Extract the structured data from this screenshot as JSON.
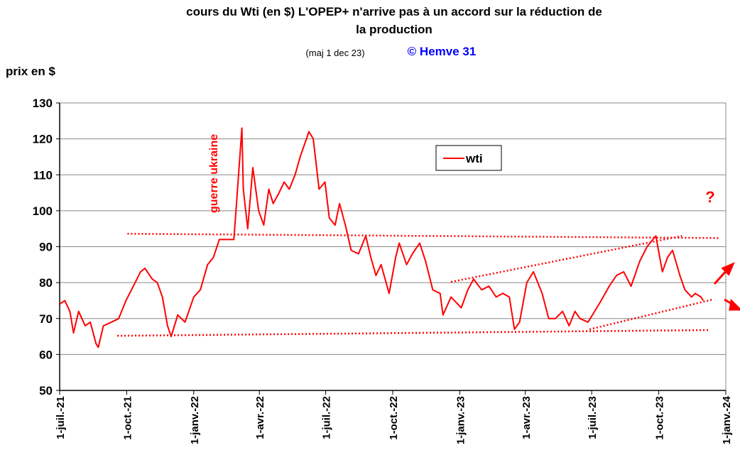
{
  "chart_data": {
    "type": "line",
    "title": [
      "cours du Wti  (en $)  L'OPEP+ n'arrive pas à un accord sur la réduction de",
      "la production"
    ],
    "subtitle": "(maj  1 dec 23)",
    "credit": "© Hemve 31",
    "ylabel": "prix en $",
    "ylim": [
      50,
      130
    ],
    "yticks": [
      50,
      60,
      70,
      80,
      90,
      100,
      110,
      120,
      130
    ],
    "xlim": [
      "2021-07-01",
      "2024-01-01"
    ],
    "xticks": [
      {
        "value": "2021-07-01",
        "label": "1-juil.-21"
      },
      {
        "value": "2021-10-01",
        "label": "1-oct.-21"
      },
      {
        "value": "2022-01-01",
        "label": "1-janv.-22"
      },
      {
        "value": "2022-04-01",
        "label": "1-avr.-22"
      },
      {
        "value": "2022-07-01",
        "label": "1-juil.-22"
      },
      {
        "value": "2022-10-01",
        "label": "1-oct.-22"
      },
      {
        "value": "2023-01-01",
        "label": "1-janv.-23"
      },
      {
        "value": "2023-04-01",
        "label": "1-avr.-23"
      },
      {
        "value": "2023-07-01",
        "label": "1-juil.-23"
      },
      {
        "value": "2023-10-01",
        "label": "1-oct.-23"
      },
      {
        "value": "2024-01-01",
        "label": "1-janv.-24"
      }
    ],
    "grid": true,
    "legend": "upper center",
    "x": [
      "2021-07-01",
      "2021-07-08",
      "2021-07-15",
      "2021-07-20",
      "2021-07-27",
      "2021-08-05",
      "2021-08-12",
      "2021-08-20",
      "2021-08-23",
      "2021-08-30",
      "2021-09-10",
      "2021-09-20",
      "2021-09-30",
      "2021-10-10",
      "2021-10-20",
      "2021-10-26",
      "2021-11-05",
      "2021-11-12",
      "2021-11-19",
      "2021-11-26",
      "2021-12-01",
      "2021-12-10",
      "2021-12-20",
      "2022-01-01",
      "2022-01-10",
      "2022-01-20",
      "2022-01-28",
      "2022-02-05",
      "2022-02-15",
      "2022-02-25",
      "2022-03-01",
      "2022-03-08",
      "2022-03-10",
      "2022-03-16",
      "2022-03-23",
      "2022-03-31",
      "2022-04-07",
      "2022-04-14",
      "2022-04-20",
      "2022-04-28",
      "2022-05-05",
      "2022-05-12",
      "2022-05-20",
      "2022-05-27",
      "2022-06-08",
      "2022-06-14",
      "2022-06-22",
      "2022-06-30",
      "2022-07-06",
      "2022-07-14",
      "2022-07-20",
      "2022-07-28",
      "2022-08-05",
      "2022-08-15",
      "2022-08-25",
      "2022-09-01",
      "2022-09-08",
      "2022-09-15",
      "2022-09-26",
      "2022-10-05",
      "2022-10-10",
      "2022-10-20",
      "2022-10-28",
      "2022-11-07",
      "2022-11-15",
      "2022-11-25",
      "2022-12-05",
      "2022-12-09",
      "2022-12-20",
      "2023-01-03",
      "2023-01-12",
      "2023-01-20",
      "2023-01-31",
      "2023-02-10",
      "2023-02-20",
      "2023-03-01",
      "2023-03-10",
      "2023-03-17",
      "2023-03-24",
      "2023-04-03",
      "2023-04-12",
      "2023-04-24",
      "2023-05-03",
      "2023-05-12",
      "2023-05-22",
      "2023-05-31",
      "2023-06-08",
      "2023-06-15",
      "2023-06-26",
      "2023-07-05",
      "2023-07-14",
      "2023-07-25",
      "2023-08-04",
      "2023-08-14",
      "2023-08-24",
      "2023-09-05",
      "2023-09-15",
      "2023-09-27",
      "2023-10-06",
      "2023-10-13",
      "2023-10-20",
      "2023-10-30",
      "2023-11-06",
      "2023-11-15",
      "2023-11-20",
      "2023-11-28",
      "2023-12-01"
    ],
    "series": [
      {
        "name": "wti",
        "color": "#ff0000",
        "values": [
          74,
          75,
          72,
          66,
          72,
          68,
          69,
          63,
          62,
          68,
          69,
          70,
          75,
          79,
          83,
          84,
          81,
          80,
          76,
          68,
          65,
          71,
          69,
          76,
          78,
          85,
          87,
          92,
          92,
          92,
          103,
          123,
          106,
          95,
          112,
          100,
          96,
          106,
          102,
          105,
          108,
          106,
          110,
          115,
          122,
          120,
          106,
          108,
          98,
          96,
          102,
          96,
          89,
          88,
          93,
          87,
          82,
          85,
          77,
          87,
          91,
          85,
          88,
          91,
          86,
          78,
          77,
          71,
          76,
          73,
          78,
          81,
          78,
          79,
          76,
          77,
          76,
          67,
          69,
          80,
          83,
          77,
          70,
          70,
          72,
          68,
          72,
          70,
          69,
          72,
          75,
          79,
          82,
          83,
          79,
          86,
          90,
          93,
          83,
          87,
          89,
          82,
          78,
          76,
          77,
          76,
          75
        ]
      }
    ],
    "trend_lines": {
      "color": "#ff0000",
      "lines": [
        {
          "x": [
            "2021-10-02",
            "2023-12-22"
          ],
          "y": [
            93.6,
            92.4
          ]
        },
        {
          "x": [
            "2021-09-18",
            "2023-12-09"
          ],
          "y": [
            65.2,
            66.8
          ]
        },
        {
          "x": [
            "2022-12-20",
            "2023-11-02"
          ],
          "y": [
            80.2,
            93
          ]
        },
        {
          "x": [
            "2023-06-28",
            "2023-12-14"
          ],
          "y": [
            67,
            75.3
          ]
        }
      ]
    },
    "annotations": [
      "guerre ukraine",
      "?"
    ]
  }
}
